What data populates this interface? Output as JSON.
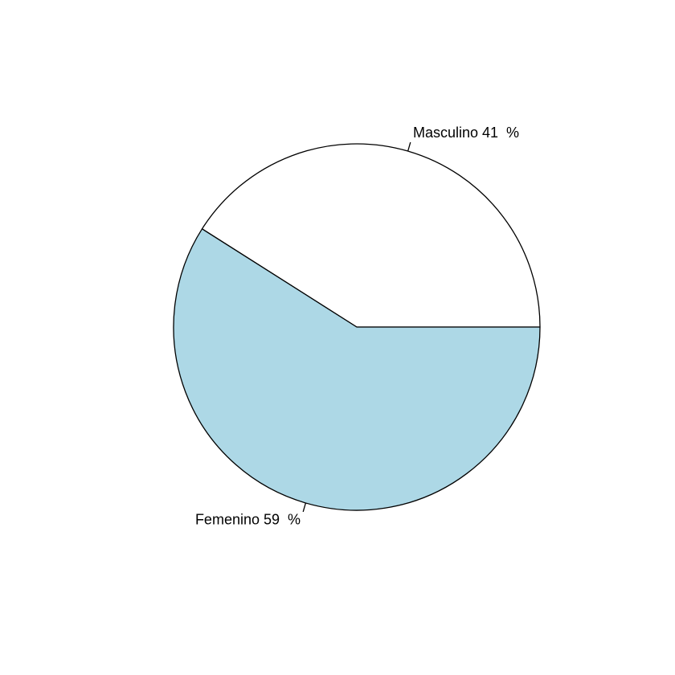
{
  "chart_data": {
    "type": "pie",
    "slices": [
      {
        "label": "Masculino 41  %",
        "value": 41,
        "color": "#ffffff"
      },
      {
        "label": "Femenino 59  %",
        "value": 59,
        "color": "#add8e6"
      }
    ],
    "start_angle_deg": 0,
    "direction": "counterclockwise",
    "border_color": "#000000"
  }
}
